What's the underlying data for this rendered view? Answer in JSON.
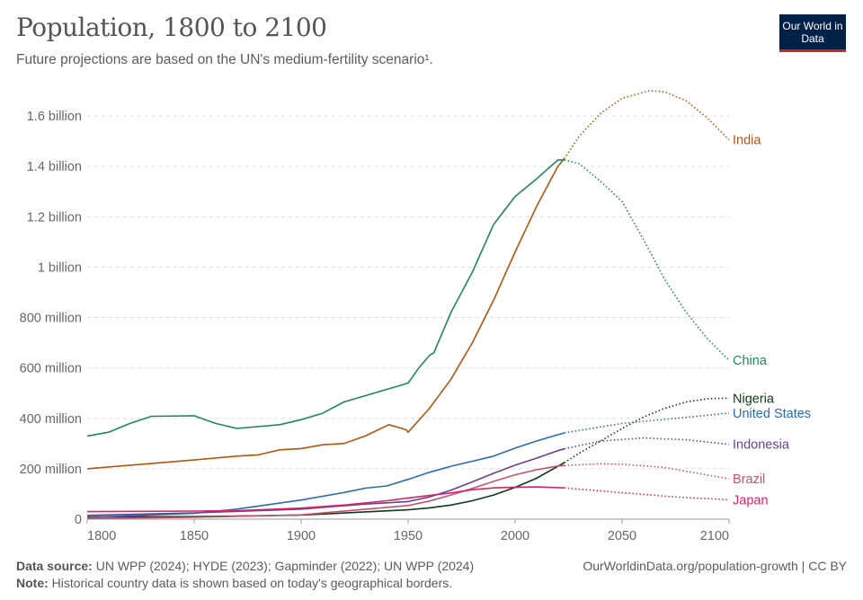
{
  "header": {
    "title": "Population, 1800 to 2100",
    "subtitle": "Future projections are based on the UN's medium-fertility scenario¹.",
    "logo": "Our World in Data"
  },
  "footer": {
    "source_label": "Data source:",
    "source": "UN WPP (2024); HYDE (2023); Gapminder (2022); UN WPP (2024)",
    "note_label": "Note:",
    "note": "Historical country data is shown based on today's geographical borders.",
    "credit": "OurWorldinData.org/population-growth | CC BY"
  },
  "chart_data": {
    "type": "line",
    "xlim": [
      1800,
      2100
    ],
    "ylim": [
      0,
      1600000000
    ],
    "x_ticks": [
      {
        "v": 1800,
        "label": "1800"
      },
      {
        "v": 1850,
        "label": "1850"
      },
      {
        "v": 1900,
        "label": "1900"
      },
      {
        "v": 1950,
        "label": "1950"
      },
      {
        "v": 2000,
        "label": "2000"
      },
      {
        "v": 2050,
        "label": "2050"
      },
      {
        "v": 2100,
        "label": "2100"
      }
    ],
    "y_ticks": [
      {
        "v": 0,
        "label": "0"
      },
      {
        "v": 200,
        "label": "200 million"
      },
      {
        "v": 400,
        "label": "400 million"
      },
      {
        "v": 600,
        "label": "600 million"
      },
      {
        "v": 800,
        "label": "800 million"
      },
      {
        "v": 1000,
        "label": "1 billion"
      },
      {
        "v": 1200,
        "label": "1.2 billion"
      },
      {
        "v": 1400,
        "label": "1.4 billion"
      },
      {
        "v": 1600,
        "label": "1.6 billion"
      }
    ],
    "units": "million",
    "grid": "horizontal dashed",
    "legend": "inline labels at right",
    "projection_style": "dotted after 2023",
    "series": [
      {
        "name": "India",
        "color": "#b8530c",
        "historical": [
          [
            1800,
            200
          ],
          [
            1850,
            235
          ],
          [
            1870,
            250
          ],
          [
            1880,
            255
          ],
          [
            1890,
            275
          ],
          [
            1900,
            280
          ],
          [
            1910,
            295
          ],
          [
            1920,
            300
          ],
          [
            1930,
            330
          ],
          [
            1941,
            375
          ],
          [
            1949,
            355
          ],
          [
            1950,
            345
          ],
          [
            1960,
            440
          ],
          [
            1970,
            555
          ],
          [
            1980,
            700
          ],
          [
            1990,
            870
          ],
          [
            2000,
            1060
          ],
          [
            2010,
            1240
          ],
          [
            2020,
            1400
          ],
          [
            2023,
            1430
          ]
        ],
        "projection": [
          [
            2023,
            1430
          ],
          [
            2030,
            1520
          ],
          [
            2040,
            1610
          ],
          [
            2050,
            1670
          ],
          [
            2063,
            1700
          ],
          [
            2070,
            1695
          ],
          [
            2080,
            1660
          ],
          [
            2090,
            1590
          ],
          [
            2100,
            1505
          ]
        ]
      },
      {
        "name": "China",
        "color": "#1e8763",
        "historical": [
          [
            1800,
            330
          ],
          [
            1810,
            345
          ],
          [
            1820,
            380
          ],
          [
            1830,
            408
          ],
          [
            1850,
            410
          ],
          [
            1860,
            380
          ],
          [
            1870,
            360
          ],
          [
            1890,
            375
          ],
          [
            1900,
            395
          ],
          [
            1910,
            420
          ],
          [
            1920,
            465
          ],
          [
            1930,
            490
          ],
          [
            1950,
            540
          ],
          [
            1955,
            600
          ],
          [
            1960,
            650
          ],
          [
            1962,
            660
          ],
          [
            1970,
            820
          ],
          [
            1980,
            980
          ],
          [
            1990,
            1170
          ],
          [
            2000,
            1280
          ],
          [
            2010,
            1350
          ],
          [
            2020,
            1425
          ],
          [
            2023,
            1425
          ]
        ],
        "projection": [
          [
            2023,
            1425
          ],
          [
            2030,
            1410
          ],
          [
            2040,
            1340
          ],
          [
            2050,
            1260
          ],
          [
            2060,
            1110
          ],
          [
            2070,
            950
          ],
          [
            2080,
            820
          ],
          [
            2090,
            715
          ],
          [
            2100,
            630
          ]
        ]
      },
      {
        "name": "Nigeria",
        "color": "#0d3c16",
        "historical": [
          [
            1800,
            9
          ],
          [
            1850,
            10
          ],
          [
            1900,
            16
          ],
          [
            1950,
            37
          ],
          [
            1960,
            45
          ],
          [
            1970,
            56
          ],
          [
            1980,
            73
          ],
          [
            1990,
            96
          ],
          [
            2000,
            126
          ],
          [
            2010,
            162
          ],
          [
            2020,
            210
          ],
          [
            2023,
            224
          ]
        ],
        "projection": [
          [
            2023,
            224
          ],
          [
            2030,
            262
          ],
          [
            2040,
            310
          ],
          [
            2050,
            360
          ],
          [
            2060,
            405
          ],
          [
            2070,
            440
          ],
          [
            2080,
            465
          ],
          [
            2090,
            478
          ],
          [
            2100,
            480
          ]
        ]
      },
      {
        "name": "United States",
        "color": "#286bbb",
        "historical": [
          [
            1800,
            7
          ],
          [
            1850,
            23
          ],
          [
            1870,
            40
          ],
          [
            1900,
            76
          ],
          [
            1920,
            106
          ],
          [
            1930,
            123
          ],
          [
            1940,
            132
          ],
          [
            1950,
            158
          ],
          [
            1960,
            186
          ],
          [
            1970,
            210
          ],
          [
            1980,
            230
          ],
          [
            1990,
            250
          ],
          [
            2000,
            282
          ],
          [
            2010,
            310
          ],
          [
            2020,
            335
          ],
          [
            2023,
            342
          ]
        ],
        "projection": [
          [
            2023,
            342
          ],
          [
            2050,
            380
          ],
          [
            2075,
            400
          ],
          [
            2100,
            421
          ]
        ]
      },
      {
        "name": "Indonesia",
        "color": "#6d3e91",
        "historical": [
          [
            1800,
            15
          ],
          [
            1850,
            25
          ],
          [
            1900,
            40
          ],
          [
            1930,
            60
          ],
          [
            1950,
            70
          ],
          [
            1960,
            88
          ],
          [
            1970,
            115
          ],
          [
            1980,
            148
          ],
          [
            1990,
            182
          ],
          [
            2000,
            214
          ],
          [
            2010,
            242
          ],
          [
            2020,
            272
          ],
          [
            2023,
            279
          ]
        ],
        "projection": [
          [
            2023,
            279
          ],
          [
            2040,
            310
          ],
          [
            2060,
            322
          ],
          [
            2080,
            315
          ],
          [
            2100,
            297
          ]
        ]
      },
      {
        "name": "Brazil",
        "color": "#c8506c",
        "historical": [
          [
            1800,
            3
          ],
          [
            1850,
            7
          ],
          [
            1900,
            17
          ],
          [
            1950,
            54
          ],
          [
            1960,
            72
          ],
          [
            1970,
            96
          ],
          [
            1980,
            122
          ],
          [
            1990,
            150
          ],
          [
            2000,
            176
          ],
          [
            2010,
            196
          ],
          [
            2020,
            211
          ],
          [
            2023,
            213
          ]
        ],
        "projection": [
          [
            2023,
            213
          ],
          [
            2040,
            220
          ],
          [
            2050,
            218
          ],
          [
            2070,
            205
          ],
          [
            2100,
            160
          ]
        ]
      },
      {
        "name": "Japan",
        "color": "#d6246a",
        "historical": [
          [
            1800,
            30
          ],
          [
            1850,
            32
          ],
          [
            1870,
            34
          ],
          [
            1900,
            44
          ],
          [
            1920,
            56
          ],
          [
            1940,
            73
          ],
          [
            1950,
            84
          ],
          [
            1960,
            94
          ],
          [
            1970,
            104
          ],
          [
            1980,
            117
          ],
          [
            1990,
            124
          ],
          [
            2000,
            127
          ],
          [
            2010,
            128
          ],
          [
            2023,
            124
          ]
        ],
        "projection": [
          [
            2023,
            124
          ],
          [
            2050,
            105
          ],
          [
            2075,
            88
          ],
          [
            2100,
            77
          ]
        ]
      }
    ]
  }
}
